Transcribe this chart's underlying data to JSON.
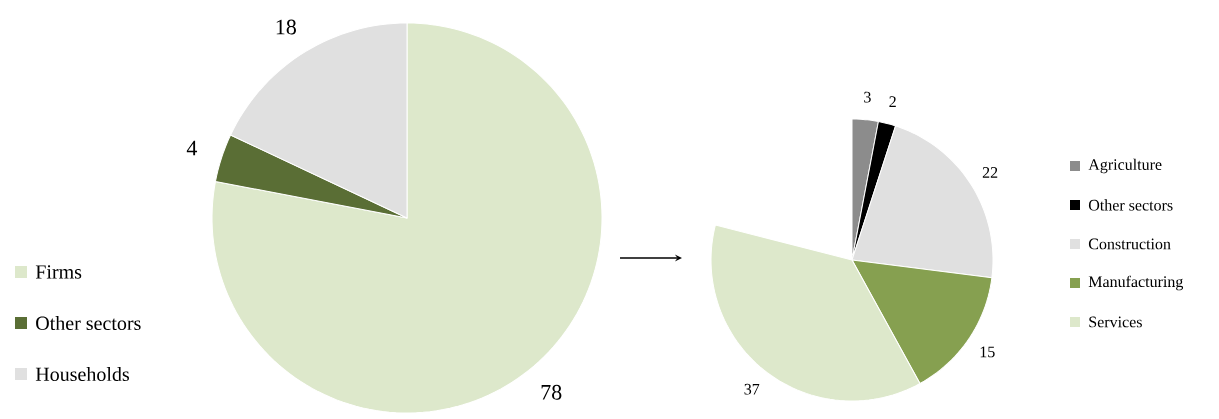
{
  "chart_data": [
    {
      "type": "pie",
      "categories": [
        "Firms",
        "Other sectors",
        "Households"
      ],
      "values": [
        78,
        4,
        18
      ],
      "colors": [
        "#dde8cb",
        "#5a6e35",
        "#e0e0e0"
      ],
      "data_labels": true,
      "legend": "bottom left"
    },
    {
      "type": "pie",
      "categories": [
        "Agriculture",
        "Other sectors",
        "Construction",
        "Manufacturing",
        "Services"
      ],
      "values": [
        3,
        2,
        22,
        15,
        37
      ],
      "colors": [
        "#8c8c8c",
        "#000000",
        "#e0e0e0",
        "#86a050",
        "#dde8cb"
      ],
      "data_labels": true,
      "legend": "right"
    }
  ]
}
